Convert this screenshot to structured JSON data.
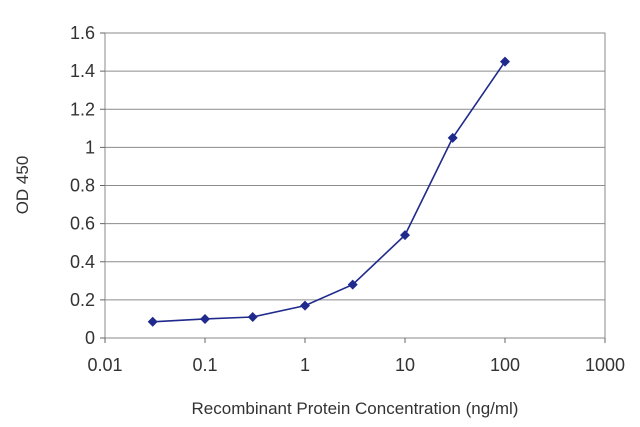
{
  "chart_data": {
    "type": "line",
    "title": "",
    "xlabel": "Recombinant Protein Concentration (ng/ml)",
    "ylabel": "OD 450",
    "xscale": "log",
    "xlim": [
      0.01,
      1000
    ],
    "ylim": [
      0,
      1.6
    ],
    "grid": "horizontal",
    "legend": "none",
    "x_ticks": [
      {
        "value": 0.01,
        "label": "0.01"
      },
      {
        "value": 0.1,
        "label": "0.1"
      },
      {
        "value": 1,
        "label": "1"
      },
      {
        "value": 10,
        "label": "10"
      },
      {
        "value": 100,
        "label": "100"
      },
      {
        "value": 1000,
        "label": "1000"
      }
    ],
    "y_ticks": [
      {
        "value": 0,
        "label": "0"
      },
      {
        "value": 0.2,
        "label": "0.2"
      },
      {
        "value": 0.4,
        "label": "0.4"
      },
      {
        "value": 0.6,
        "label": "0.6"
      },
      {
        "value": 0.8,
        "label": "0.8"
      },
      {
        "value": 1.0,
        "label": "1"
      },
      {
        "value": 1.2,
        "label": "1.2"
      },
      {
        "value": 1.4,
        "label": "1.4"
      },
      {
        "value": 1.6,
        "label": "1.6"
      }
    ],
    "series": [
      {
        "color": "#1f2a8c",
        "points": [
          {
            "x": 0.03,
            "y": 0.085
          },
          {
            "x": 0.1,
            "y": 0.1
          },
          {
            "x": 0.3,
            "y": 0.11
          },
          {
            "x": 1,
            "y": 0.17
          },
          {
            "x": 3,
            "y": 0.28
          },
          {
            "x": 10,
            "y": 0.54
          },
          {
            "x": 30,
            "y": 1.05
          },
          {
            "x": 100,
            "y": 1.45
          }
        ]
      }
    ]
  }
}
